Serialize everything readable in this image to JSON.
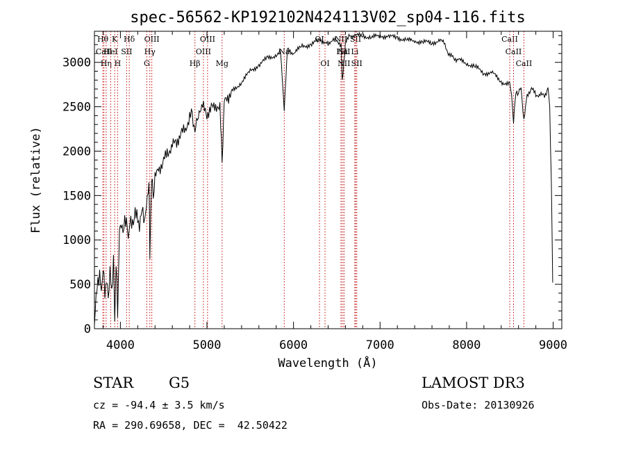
{
  "chart_data": {
    "type": "line",
    "title": "spec-56562-KP192102N424113V02_sp04-116.fits",
    "xlabel": "Wavelength (Å)",
    "ylabel": "Flux (relative)",
    "xlim": [
      3700,
      9100
    ],
    "ylim": [
      0,
      3350
    ],
    "x_ticks": [
      4000,
      5000,
      6000,
      7000,
      8000,
      9000
    ],
    "y_ticks": [
      0,
      500,
      1000,
      1500,
      2000,
      2500,
      3000
    ],
    "series": [
      {
        "name": "flux",
        "x": [
          3700,
          3720,
          3740,
          3760,
          3780,
          3800,
          3820,
          3840,
          3860,
          3880,
          3900,
          3920,
          3934,
          3950,
          3968,
          3990,
          4020,
          4050,
          4080,
          4102,
          4130,
          4160,
          4200,
          4230,
          4260,
          4290,
          4310,
          4330,
          4340,
          4360,
          4380,
          4400,
          4450,
          4500,
          4550,
          4600,
          4650,
          4700,
          4750,
          4800,
          4830,
          4861,
          4900,
          4950,
          5000,
          5050,
          5100,
          5150,
          5175,
          5200,
          5250,
          5300,
          5400,
          5500,
          5600,
          5700,
          5800,
          5850,
          5893,
          5930,
          6000,
          6100,
          6200,
          6300,
          6350,
          6400,
          6450,
          6500,
          6550,
          6563,
          6600,
          6650,
          6700,
          6800,
          6900,
          7000,
          7100,
          7200,
          7300,
          7400,
          7500,
          7600,
          7700,
          7750,
          7800,
          7850,
          7900,
          8000,
          8100,
          8200,
          8300,
          8400,
          8498,
          8520,
          8542,
          8570,
          8600,
          8630,
          8662,
          8700,
          8750,
          8800,
          8850,
          8900,
          8940,
          8960,
          8980,
          8995
        ],
        "y": [
          40,
          350,
          520,
          620,
          450,
          700,
          420,
          520,
          330,
          620,
          420,
          800,
          150,
          740,
          200,
          1080,
          1150,
          1180,
          1130,
          1100,
          1230,
          1250,
          1250,
          1180,
          1350,
          1200,
          1550,
          1650,
          900,
          1650,
          1500,
          1680,
          1820,
          1880,
          2000,
          2050,
          2120,
          2180,
          2270,
          2350,
          2450,
          2180,
          2450,
          2500,
          2420,
          2480,
          2520,
          2470,
          1900,
          2550,
          2620,
          2680,
          2780,
          2900,
          2970,
          3050,
          3080,
          3120,
          2480,
          3150,
          3100,
          3180,
          3200,
          3250,
          3230,
          3200,
          3260,
          3240,
          3200,
          2780,
          3220,
          3300,
          3300,
          3300,
          3280,
          3300,
          3290,
          3280,
          3250,
          3240,
          3230,
          3220,
          3250,
          3200,
          3080,
          3050,
          3030,
          2990,
          2950,
          2880,
          2880,
          2780,
          2750,
          2650,
          2320,
          2680,
          2650,
          2720,
          2330,
          2640,
          2700,
          2640,
          2630,
          2630,
          2700,
          2500,
          1600,
          520
        ]
      }
    ],
    "lines": [
      {
        "name": "Hθ",
        "x": 3797,
        "row": 0
      },
      {
        "name": "CaII",
        "x": 3810,
        "row": 1
      },
      {
        "name": "Hη",
        "x": 3835,
        "row": 2
      },
      {
        "name": "K",
        "x": 3934,
        "row": 0
      },
      {
        "name": "HeI",
        "x": 3888,
        "row": 1
      },
      {
        "name": "H",
        "x": 3968,
        "row": 2
      },
      {
        "name": "Hδ",
        "x": 4102,
        "row": 0
      },
      {
        "name": "SII",
        "x": 4072,
        "row": 1
      },
      {
        "name": "OIII",
        "x": 4363,
        "row": 0
      },
      {
        "name": "Hγ",
        "x": 4340,
        "row": 1
      },
      {
        "name": "G",
        "x": 4305,
        "row": 2
      },
      {
        "name": "OIII",
        "x": 5007,
        "row": 0
      },
      {
        "name": "OIII",
        "x": 4959,
        "row": 1
      },
      {
        "name": "Hβ",
        "x": 4861,
        "row": 2
      },
      {
        "name": "Mg",
        "x": 5175,
        "row": 2
      },
      {
        "name": "Na",
        "x": 5893,
        "row": 1
      },
      {
        "name": "OI",
        "x": 6300,
        "row": 0
      },
      {
        "name": "OI",
        "x": 6364,
        "row": 2
      },
      {
        "name": "NII",
        "x": 6548,
        "row": 0
      },
      {
        "name": "SII",
        "x": 6717,
        "row": 0
      },
      {
        "name": "NII",
        "x": 6583,
        "row": 1
      },
      {
        "name": "Hα",
        "x": 6563,
        "row": 1
      },
      {
        "name": "Li",
        "x": 6708,
        "row": 1
      },
      {
        "name": "NII",
        "x": 6583,
        "row": 2
      },
      {
        "name": "SII",
        "x": 6731,
        "row": 2
      },
      {
        "name": "CaII",
        "x": 8498,
        "row": 0
      },
      {
        "name": "CaII",
        "x": 8542,
        "row": 1
      },
      {
        "name": "CaII",
        "x": 8662,
        "row": 2
      }
    ]
  },
  "info": {
    "class": "STAR",
    "subclass": "G5",
    "survey": "LAMOST DR3",
    "cz": "cz = -94.4 ± 3.5 km/s",
    "obs_date": "Obs-Date: 20130926",
    "coords": "RA = 290.69658, DEC =  42.50422"
  }
}
